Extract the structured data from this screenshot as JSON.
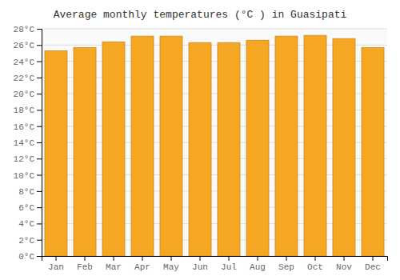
{
  "chart_data": {
    "type": "bar",
    "title": "Average monthly temperatures (°C ) in Guasipati",
    "categories": [
      "Jan",
      "Feb",
      "Mar",
      "Apr",
      "May",
      "Jun",
      "Jul",
      "Aug",
      "Sep",
      "Oct",
      "Nov",
      "Dec"
    ],
    "values": [
      25.3,
      25.7,
      26.4,
      27.1,
      27.1,
      26.3,
      26.3,
      26.6,
      27.1,
      27.2,
      26.8,
      25.7
    ],
    "color": "#F5A623",
    "ylim": [
      0,
      28
    ],
    "yticks": [
      {
        "value": 0,
        "label": "0°C"
      },
      {
        "value": 2,
        "label": "2°C"
      },
      {
        "value": 4,
        "label": "4°C"
      },
      {
        "value": 6,
        "label": "6°C"
      },
      {
        "value": 8,
        "label": "8°C"
      },
      {
        "value": 10,
        "label": "10°C"
      },
      {
        "value": 12,
        "label": "12°C"
      },
      {
        "value": 14,
        "label": "14°C"
      },
      {
        "value": 16,
        "label": "16°C"
      },
      {
        "value": 18,
        "label": "18°C"
      },
      {
        "value": 20,
        "label": "20°C"
      },
      {
        "value": 22,
        "label": "22°C"
      },
      {
        "value": 24,
        "label": "24°C"
      },
      {
        "value": 26,
        "label": "26°C"
      },
      {
        "value": 28,
        "label": "28°C"
      }
    ],
    "grid": true
  }
}
